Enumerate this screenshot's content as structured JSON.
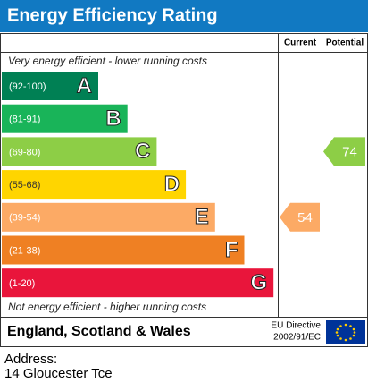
{
  "header": {
    "title": "Energy Efficiency Rating"
  },
  "columns": [
    "Current",
    "Potential"
  ],
  "top_note": "Very energy efficient - lower running costs",
  "bottom_note": "Not energy efficient - higher running costs",
  "bands": [
    {
      "range": "(92-100)",
      "letter": "A",
      "color": "#008054"
    },
    {
      "range": "(81-91)",
      "letter": "B",
      "color": "#19b459"
    },
    {
      "range": "(69-80)",
      "letter": "C",
      "color": "#8dce46"
    },
    {
      "range": "(55-68)",
      "letter": "D",
      "color": "#ffd500"
    },
    {
      "range": "(39-54)",
      "letter": "E",
      "color": "#fcaa65"
    },
    {
      "range": "(21-38)",
      "letter": "F",
      "color": "#ef8023"
    },
    {
      "range": "(1-20)",
      "letter": "G",
      "color": "#e9153b"
    }
  ],
  "current": 54,
  "potential": 74,
  "footer": {
    "region": "England, Scotland & Wales",
    "directive": [
      "EU Directive",
      "2002/91/EC"
    ]
  },
  "address": {
    "label": "Address:",
    "value": "14 Gloucester Tce"
  }
}
